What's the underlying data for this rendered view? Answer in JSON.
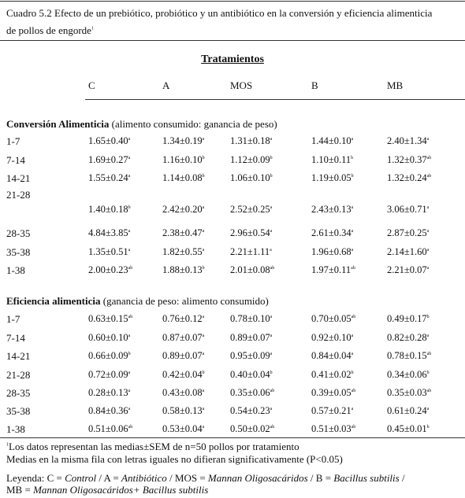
{
  "caption": {
    "line1": "Cuadro 5.2 Efecto de un prebiótico, probiótico y un antibiótico en la conversión y eficiencia alimenticia",
    "line2": "de pollos de engorde",
    "line2_sup": "1"
  },
  "header": {
    "group_title": "Tratamientos",
    "columns": [
      "C",
      "A",
      "MOS",
      "B",
      "MB"
    ]
  },
  "sections": [
    {
      "title_bold": "Conversión Alimenticia",
      "title_rest": " (alimento consumido: ganancia de peso)",
      "rows": [
        {
          "label": "1-7",
          "cells": [
            [
              "1.65±0.40",
              "a"
            ],
            [
              "1.34±0.19",
              "a"
            ],
            [
              "1.31±0.18",
              "a"
            ],
            [
              "1.44±0.10",
              "a"
            ],
            [
              "2.40±1.34",
              "a"
            ]
          ]
        },
        {
          "label": "7-14",
          "cells": [
            [
              "1.69±0.27",
              "a"
            ],
            [
              "1.16±0.10",
              "b"
            ],
            [
              "1.12±0.09",
              "b"
            ],
            [
              "1.10±0.11",
              "b"
            ],
            [
              "1.32±0.37",
              "ab"
            ]
          ]
        },
        {
          "label": "14-21",
          "cells": [
            [
              "1.55±0.24",
              "a"
            ],
            [
              "1.14±0.08",
              "b"
            ],
            [
              "1.06±0.10",
              "b"
            ],
            [
              "1.19±0.05",
              "b"
            ],
            [
              "1.32±0.24",
              "ab"
            ]
          ]
        },
        {
          "label": "21-28",
          "cells": [
            [
              "1.40±0.18",
              "b"
            ],
            [
              "2.42±0.20",
              "a"
            ],
            [
              "2.52±0.25",
              "a"
            ],
            [
              "2.43±0.13",
              "a"
            ],
            [
              "3.06±0.71",
              "a"
            ]
          ]
        },
        {
          "label": "28-35",
          "cells": [
            [
              "4.84±3.85",
              "a"
            ],
            [
              "2.38±0.47",
              "a"
            ],
            [
              "2.96±0.54",
              "a"
            ],
            [
              "2.61±0.34",
              "a"
            ],
            [
              "2.87±0.25",
              "a"
            ]
          ]
        },
        {
          "label": "35-38",
          "cells": [
            [
              "1.35±0.51",
              "a"
            ],
            [
              "1.82±0.55",
              "a"
            ],
            [
              "2.21±1.11",
              "a"
            ],
            [
              "1.96±0.68",
              "a"
            ],
            [
              "2.14±1.60",
              "a"
            ]
          ]
        },
        {
          "label": "1-38",
          "cells": [
            [
              "2.00±0.23",
              "ab"
            ],
            [
              "1.88±0.13",
              "b"
            ],
            [
              "2.01±0.08",
              "ab"
            ],
            [
              "1.97±0.11",
              "ab"
            ],
            [
              "2.21±0.07",
              "a"
            ]
          ]
        }
      ]
    },
    {
      "title_bold": "Eficiencia alimenticia",
      "title_rest": " (ganancia de peso: alimento consumido)",
      "rows": [
        {
          "label": "1-7",
          "cells": [
            [
              "0.63±0.15",
              "ab"
            ],
            [
              "0.76±0.12",
              "a"
            ],
            [
              "0.78±0.10",
              "a"
            ],
            [
              "0.70±0.05",
              "ab"
            ],
            [
              "0.49±0.17",
              "b"
            ]
          ]
        },
        {
          "label": "7-14",
          "cells": [
            [
              "0.60±0.10",
              "a"
            ],
            [
              "0.87±0.07",
              "a"
            ],
            [
              "0.89±0.07",
              "a"
            ],
            [
              "0.92±0.10",
              "a"
            ],
            [
              "0.82±0.28",
              "a"
            ]
          ]
        },
        {
          "label": "14-21",
          "cells": [
            [
              "0.66±0.09",
              "b"
            ],
            [
              "0.89±0.07",
              "a"
            ],
            [
              "0.95±0.09",
              "a"
            ],
            [
              "0.84±0.04",
              "a"
            ],
            [
              "0.78±0.15",
              "ab"
            ]
          ]
        },
        {
          "label": "21-28",
          "cells": [
            [
              "0.72±0.09",
              "a"
            ],
            [
              "0.42±0.04",
              "b"
            ],
            [
              "0.40±0.04",
              "b"
            ],
            [
              "0.41±0.02",
              "b"
            ],
            [
              "0.34±0.06",
              "b"
            ]
          ]
        },
        {
          "label": "28-35",
          "cells": [
            [
              "0.28±0.13",
              "a"
            ],
            [
              "0.43±0.08",
              "a"
            ],
            [
              "0.35±0.06",
              "ab"
            ],
            [
              "0.39±0.05",
              "ab"
            ],
            [
              "0.35±0.03",
              "ab"
            ]
          ]
        },
        {
          "label": "35-38",
          "cells": [
            [
              "0.84±0.36",
              "a"
            ],
            [
              "0.58±0.13",
              "a"
            ],
            [
              "0.54±0.23",
              "a"
            ],
            [
              "0.57±0.21",
              "a"
            ],
            [
              "0.61±0.24",
              "a"
            ]
          ]
        },
        {
          "label": "1-38",
          "cells": [
            [
              "0.51±0.06",
              "ab"
            ],
            [
              "0.53±0.04",
              "a"
            ],
            [
              "0.50±0.02",
              "ab"
            ],
            [
              "0.51±0.03",
              "ab"
            ],
            [
              "0.45±0.01",
              "b"
            ]
          ]
        }
      ]
    }
  ],
  "footnotes": {
    "note1_sup": "1",
    "note1": "Los datos representan las medias±SEM de n=50 pollos por tratamiento",
    "note2": "Medias en la misma fila con letras iguales no difieran significativamente (P<0.05)",
    "legend_prefix": "Leyenda: C = ",
    "legend_c": "Control",
    "legend_sep1": "  / A = ",
    "legend_a": "Antibiótico",
    "legend_sep2": " / MOS = ",
    "legend_mos": "Mannan Oligosacáridos",
    "legend_sep3": " / B = ",
    "legend_b": "Bacillus subtilis",
    "legend_sep4": " /",
    "legend_mb_prefix": " MB = ",
    "legend_mb": "Mannan Oligosacáridos+ Bacillus subtilis"
  }
}
